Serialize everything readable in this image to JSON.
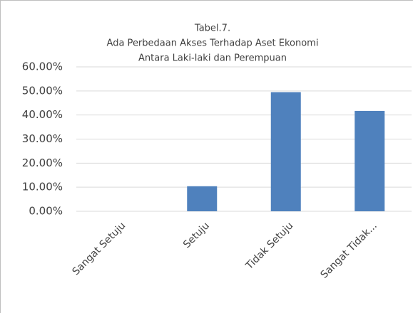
{
  "chart_data": {
    "type": "bar",
    "title": [
      "Tabel.7.",
      "Ada Perbedaan Akses Terhadap Aset Ekonomi",
      "Antara Laki-laki dan Perempuan"
    ],
    "categories": [
      "Sangat Setuju",
      "Setuju",
      "Tidak Setuju",
      "Sangat Tidak..."
    ],
    "values": [
      0,
      10.4,
      49.5,
      41.7
    ],
    "color": "#4f81bd",
    "ylim": [
      0,
      60
    ],
    "yticks": [
      {
        "value": 0,
        "label": "0.00%"
      },
      {
        "value": 10,
        "label": "10.00%"
      },
      {
        "value": 20,
        "label": "20.00%"
      },
      {
        "value": 30,
        "label": "30.00%"
      },
      {
        "value": 40,
        "label": "40.00%"
      },
      {
        "value": 50,
        "label": "50.00%"
      },
      {
        "value": 60,
        "label": "60.00%"
      }
    ],
    "grid": true
  }
}
